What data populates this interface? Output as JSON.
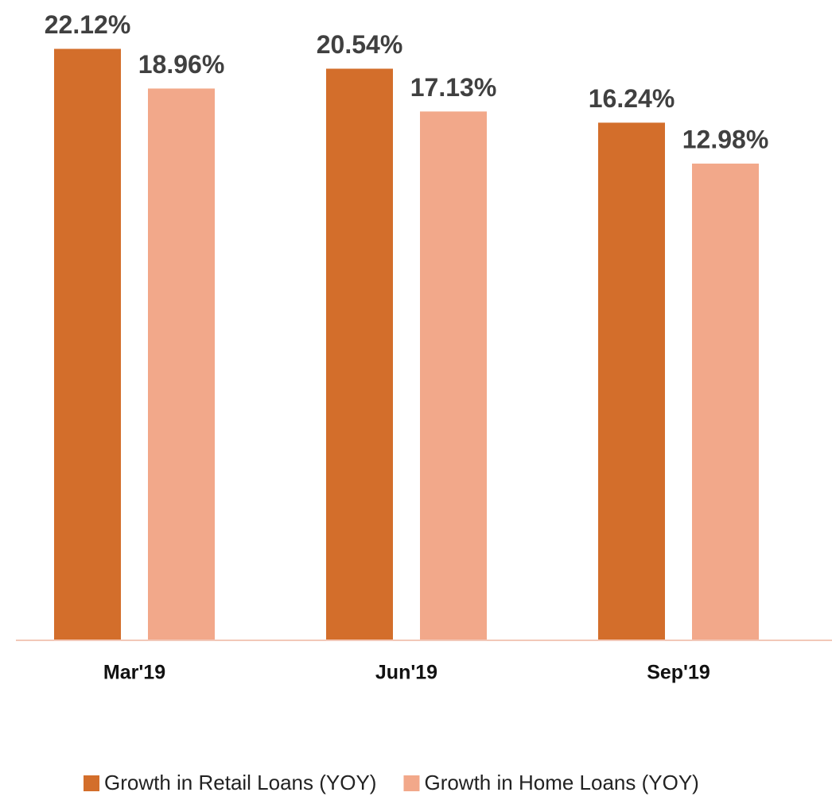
{
  "chart_data": {
    "type": "bar",
    "categories": [
      "Mar'19",
      "Jun'19",
      "Sep'19"
    ],
    "series": [
      {
        "name": "Growth in Retail Loans (YOY)",
        "color": "#d36e2b",
        "values": [
          22.12,
          20.54,
          16.24
        ],
        "value_labels": [
          "22.12%",
          "20.54%",
          "16.24%"
        ]
      },
      {
        "name": "Growth in Home Loans (YOY)",
        "color": "#f2a88a",
        "values": [
          18.96,
          17.13,
          12.98
        ],
        "value_labels": [
          "18.96%",
          "17.13%",
          "12.98%"
        ]
      }
    ],
    "ylim": [
      -25,
      25
    ]
  }
}
